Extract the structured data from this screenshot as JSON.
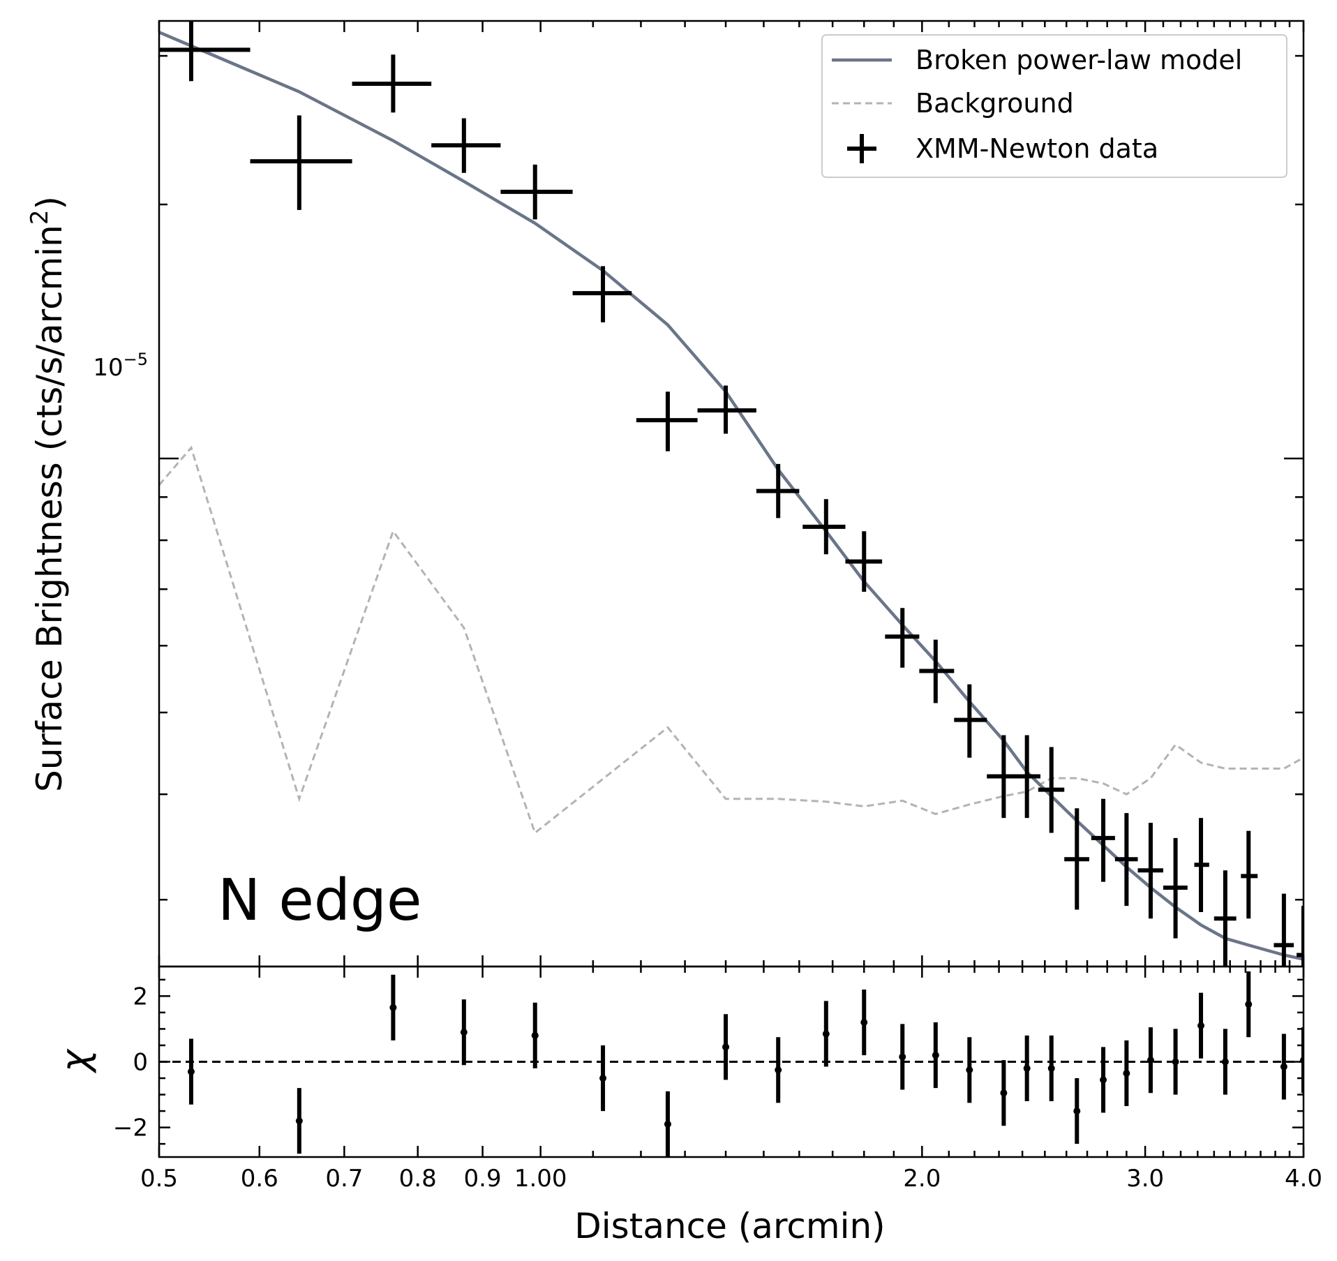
{
  "chart_data": [
    {
      "type": "scatter",
      "panel": "surface-brightness",
      "ylabel": "Surface Brightness (cts/s/arcmin²)",
      "ylabel_main": "Surface Brightness (cts/s/arcmin",
      "ylabel_sup": "2",
      "ylabel_tail": ")",
      "yscale": "log",
      "xscale": "log",
      "xlim": [
        0.5,
        4.0
      ],
      "ylim": [
        2.5e-06,
        3.3e-05
      ],
      "ytick_label": {
        "base": "10",
        "exp": "−5",
        "value": 1e-05
      },
      "annotation": "N edge",
      "legend": {
        "placement": "top-right",
        "model": "Broken power-law model",
        "background": "Background",
        "data": "XMM-Newton data"
      },
      "colors": {
        "model": "#6b7589",
        "background": "#b3b3b3",
        "data": "#000000"
      },
      "series": [
        {
          "name": "XMM-Newton data",
          "points": [
            {
              "x": 0.53,
              "xlo": 0.5,
              "xhi": 0.59,
              "y": 3.05e-05,
              "ylo": 2.8e-05,
              "yhi": 3.35e-05
            },
            {
              "x": 0.645,
              "xlo": 0.59,
              "xhi": 0.71,
              "y": 2.25e-05,
              "ylo": 1.97e-05,
              "yhi": 2.55e-05
            },
            {
              "x": 0.765,
              "xlo": 0.71,
              "xhi": 0.82,
              "y": 2.78e-05,
              "ylo": 2.57e-05,
              "yhi": 3.01e-05
            },
            {
              "x": 0.87,
              "xlo": 0.82,
              "xhi": 0.93,
              "y": 2.35e-05,
              "ylo": 2.18e-05,
              "yhi": 2.53e-05
            },
            {
              "x": 0.99,
              "xlo": 0.93,
              "xhi": 1.06,
              "y": 2.07e-05,
              "ylo": 1.92e-05,
              "yhi": 2.23e-05
            },
            {
              "x": 1.12,
              "xlo": 1.06,
              "xhi": 1.18,
              "y": 1.57e-05,
              "ylo": 1.45e-05,
              "yhi": 1.69e-05
            },
            {
              "x": 1.26,
              "xlo": 1.19,
              "xhi": 1.33,
              "y": 1.11e-05,
              "ylo": 1.02e-05,
              "yhi": 1.2e-05
            },
            {
              "x": 1.4,
              "xlo": 1.33,
              "xhi": 1.48,
              "y": 1.14e-05,
              "ylo": 1.07e-05,
              "yhi": 1.22e-05
            },
            {
              "x": 1.54,
              "xlo": 1.48,
              "xhi": 1.6,
              "y": 9.15e-06,
              "ylo": 8.5e-06,
              "yhi": 9.85e-06
            },
            {
              "x": 1.68,
              "xlo": 1.61,
              "xhi": 1.74,
              "y": 8.3e-06,
              "ylo": 7.7e-06,
              "yhi": 8.95e-06
            },
            {
              "x": 1.8,
              "xlo": 1.74,
              "xhi": 1.86,
              "y": 7.55e-06,
              "ylo": 6.95e-06,
              "yhi": 8.2e-06
            },
            {
              "x": 1.93,
              "xlo": 1.87,
              "xhi": 1.99,
              "y": 6.15e-06,
              "ylo": 5.65e-06,
              "yhi": 6.65e-06
            },
            {
              "x": 2.05,
              "xlo": 1.99,
              "xhi": 2.12,
              "y": 5.6e-06,
              "ylo": 5.13e-06,
              "yhi": 6.1e-06
            },
            {
              "x": 2.18,
              "xlo": 2.12,
              "xhi": 2.25,
              "y": 4.9e-06,
              "ylo": 4.42e-06,
              "yhi": 5.4e-06
            },
            {
              "x": 2.32,
              "xlo": 2.25,
              "xhi": 2.39,
              "y": 4.2e-06,
              "ylo": 3.75e-06,
              "yhi": 4.7e-06
            },
            {
              "x": 2.42,
              "xlo": 2.36,
              "xhi": 2.48,
              "y": 4.2e-06,
              "ylo": 3.75e-06,
              "yhi": 4.7e-06
            },
            {
              "x": 2.53,
              "xlo": 2.47,
              "xhi": 2.59,
              "y": 4.05e-06,
              "ylo": 3.6e-06,
              "yhi": 4.55e-06
            },
            {
              "x": 2.65,
              "xlo": 2.59,
              "xhi": 2.71,
              "y": 3.35e-06,
              "ylo": 2.92e-06,
              "yhi": 3.85e-06
            },
            {
              "x": 2.78,
              "xlo": 2.72,
              "xhi": 2.84,
              "y": 3.55e-06,
              "ylo": 3.15e-06,
              "yhi": 3.95e-06
            },
            {
              "x": 2.9,
              "xlo": 2.84,
              "xhi": 2.96,
              "y": 3.35e-06,
              "ylo": 2.95e-06,
              "yhi": 3.8e-06
            },
            {
              "x": 3.03,
              "xlo": 2.96,
              "xhi": 3.1,
              "y": 3.25e-06,
              "ylo": 2.85e-06,
              "yhi": 3.7e-06
            },
            {
              "x": 3.17,
              "xlo": 3.1,
              "xhi": 3.24,
              "y": 3.1e-06,
              "ylo": 2.7e-06,
              "yhi": 3.55e-06
            },
            {
              "x": 3.32,
              "xlo": 3.28,
              "xhi": 3.37,
              "y": 3.3e-06,
              "ylo": 2.9e-06,
              "yhi": 3.75e-06
            },
            {
              "x": 3.47,
              "xlo": 3.4,
              "xhi": 3.54,
              "y": 2.85e-06,
              "ylo": 2.45e-06,
              "yhi": 3.25e-06
            },
            {
              "x": 3.62,
              "xlo": 3.57,
              "xhi": 3.68,
              "y": 3.2e-06,
              "ylo": 2.85e-06,
              "yhi": 3.62e-06
            },
            {
              "x": 3.86,
              "xlo": 3.79,
              "xhi": 3.93,
              "y": 2.65e-06,
              "ylo": 2.25e-06,
              "yhi": 3.05e-06
            },
            {
              "x": 4.0,
              "xlo": 3.95,
              "xhi": 4.05,
              "y": 2.58e-06,
              "ylo": 2.25e-06,
              "yhi": 2.95e-06
            }
          ]
        },
        {
          "name": "Broken power-law model",
          "x": [
            0.5,
            0.645,
            0.765,
            0.87,
            0.99,
            1.12,
            1.26,
            1.4,
            1.54,
            1.68,
            1.8,
            1.93,
            2.05,
            2.18,
            2.32,
            2.42,
            2.53,
            2.65,
            2.78,
            2.9,
            3.03,
            3.17,
            3.32,
            3.47,
            3.62,
            3.86,
            4.0
          ],
          "y": [
            3.2e-05,
            2.72e-05,
            2.38e-05,
            2.13e-05,
            1.9e-05,
            1.67e-05,
            1.44e-05,
            1.2e-05,
            9.7e-06,
            8.2e-06,
            7.15e-06,
            6.35e-06,
            5.75e-06,
            5.15e-06,
            4.63e-06,
            4.25e-06,
            3.98e-06,
            3.72e-06,
            3.48e-06,
            3.28e-06,
            3.1e-06,
            2.94e-06,
            2.8e-06,
            2.7e-06,
            2.65e-06,
            2.58e-06,
            2.55e-06
          ]
        },
        {
          "name": "Background",
          "x": [
            0.5,
            0.53,
            0.645,
            0.765,
            0.87,
            0.99,
            1.26,
            1.4,
            1.54,
            1.68,
            1.8,
            1.93,
            2.05,
            2.18,
            2.32,
            2.42,
            2.53,
            2.65,
            2.78,
            2.9,
            3.03,
            3.17,
            3.32,
            3.47,
            3.62,
            3.86,
            4.0
          ],
          "y": [
            9.3e-06,
            1.03e-05,
            3.95e-06,
            8.2e-06,
            6.3e-06,
            3.6e-06,
            4.8e-06,
            3.95e-06,
            3.95e-06,
            3.92e-06,
            3.87e-06,
            3.93e-06,
            3.79e-06,
            3.89e-06,
            3.98e-06,
            4.03e-06,
            4.18e-06,
            4.18e-06,
            4.12e-06,
            4e-06,
            4.18e-06,
            4.58e-06,
            4.36e-06,
            4.29e-06,
            4.29e-06,
            4.29e-06,
            4.42e-06
          ]
        }
      ]
    },
    {
      "type": "scatter",
      "panel": "residuals",
      "ylabel": "χ",
      "xlabel": "Distance (arcmin)",
      "xscale": "log",
      "xlim": [
        0.5,
        4.0
      ],
      "ylim": [
        -2.9,
        2.9
      ],
      "yticks": [
        -2,
        0,
        2
      ],
      "ytick_labels": [
        "−2",
        "0",
        "2"
      ],
      "xtick_labels": [
        {
          "value": 0.5,
          "label": "0.5"
        },
        {
          "value": 0.6,
          "label": "0.6"
        },
        {
          "value": 0.7,
          "label": "0.7"
        },
        {
          "value": 0.8,
          "label": "0.8"
        },
        {
          "value": 0.9,
          "label": "0.9"
        },
        {
          "value": 1.0,
          "label": "1.00"
        },
        {
          "value": 2.0,
          "label": "2.0"
        },
        {
          "value": 3.0,
          "label": "3.0"
        },
        {
          "value": 4.0,
          "label": "4.0"
        }
      ],
      "zero_line": "dashed",
      "series": [
        {
          "name": "χ",
          "points": [
            {
              "x": 0.53,
              "y": -0.3,
              "err": 1.0
            },
            {
              "x": 0.645,
              "y": -1.8,
              "err": 1.0
            },
            {
              "x": 0.765,
              "y": 1.65,
              "err": 1.0
            },
            {
              "x": 0.87,
              "y": 0.9,
              "err": 1.0
            },
            {
              "x": 0.99,
              "y": 0.8,
              "err": 1.0
            },
            {
              "x": 1.12,
              "y": -0.5,
              "err": 1.0
            },
            {
              "x": 1.26,
              "y": -1.9,
              "err": 1.0
            },
            {
              "x": 1.4,
              "y": 0.45,
              "err": 1.0
            },
            {
              "x": 1.54,
              "y": -0.25,
              "err": 1.0
            },
            {
              "x": 1.68,
              "y": 0.85,
              "err": 1.0
            },
            {
              "x": 1.8,
              "y": 1.2,
              "err": 1.0
            },
            {
              "x": 1.93,
              "y": 0.15,
              "err": 1.0
            },
            {
              "x": 2.05,
              "y": 0.2,
              "err": 1.0
            },
            {
              "x": 2.18,
              "y": -0.25,
              "err": 1.0
            },
            {
              "x": 2.32,
              "y": -0.95,
              "err": 1.0
            },
            {
              "x": 2.42,
              "y": -0.2,
              "err": 1.0
            },
            {
              "x": 2.53,
              "y": -0.2,
              "err": 1.0
            },
            {
              "x": 2.65,
              "y": -1.5,
              "err": 1.0
            },
            {
              "x": 2.78,
              "y": -0.55,
              "err": 1.0
            },
            {
              "x": 2.9,
              "y": -0.35,
              "err": 1.0
            },
            {
              "x": 3.03,
              "y": 0.05,
              "err": 1.0
            },
            {
              "x": 3.17,
              "y": 0.0,
              "err": 1.0
            },
            {
              "x": 3.32,
              "y": 1.1,
              "err": 1.0
            },
            {
              "x": 3.47,
              "y": 0.0,
              "err": 1.0
            },
            {
              "x": 3.62,
              "y": 1.75,
              "err": 1.0
            },
            {
              "x": 3.86,
              "y": -0.15,
              "err": 1.0
            },
            {
              "x": 4.0,
              "y": 0.05,
              "err": 1.0
            }
          ]
        }
      ]
    }
  ]
}
